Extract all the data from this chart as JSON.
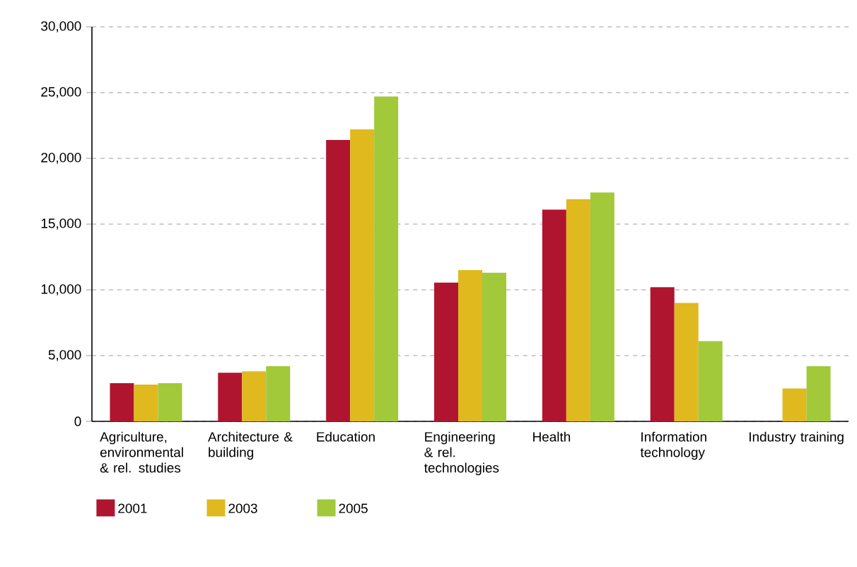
{
  "chart_data": {
    "type": "bar",
    "categories": [
      "Agriculture, environmental & rel. studies",
      "Architecture & building",
      "Education",
      "Engineering & rel. technologies",
      "Health",
      "Information technology",
      "Industry training"
    ],
    "series": [
      {
        "name": "2001",
        "color": "#b01530",
        "values": [
          2900,
          3700,
          21400,
          10550,
          16100,
          10200,
          null
        ]
      },
      {
        "name": "2003",
        "color": "#dfb91e",
        "values": [
          2800,
          3800,
          22200,
          11500,
          16900,
          9000,
          2500
        ]
      },
      {
        "name": "2005",
        "color": "#a1c93a",
        "values": [
          2900,
          4200,
          24700,
          11300,
          17400,
          6100,
          4200
        ]
      }
    ],
    "ylim": [
      0,
      30000
    ],
    "yticks": [
      {
        "value": 0,
        "label": "0"
      },
      {
        "value": 5000,
        "label": "5,000"
      },
      {
        "value": 10000,
        "label": "10,000"
      },
      {
        "value": 15000,
        "label": "15,000"
      },
      {
        "value": 20000,
        "label": "20,000"
      },
      {
        "value": 25000,
        "label": "25,000"
      },
      {
        "value": 30000,
        "label": "30,000"
      }
    ],
    "grid": "y",
    "legend": "bottom left"
  }
}
